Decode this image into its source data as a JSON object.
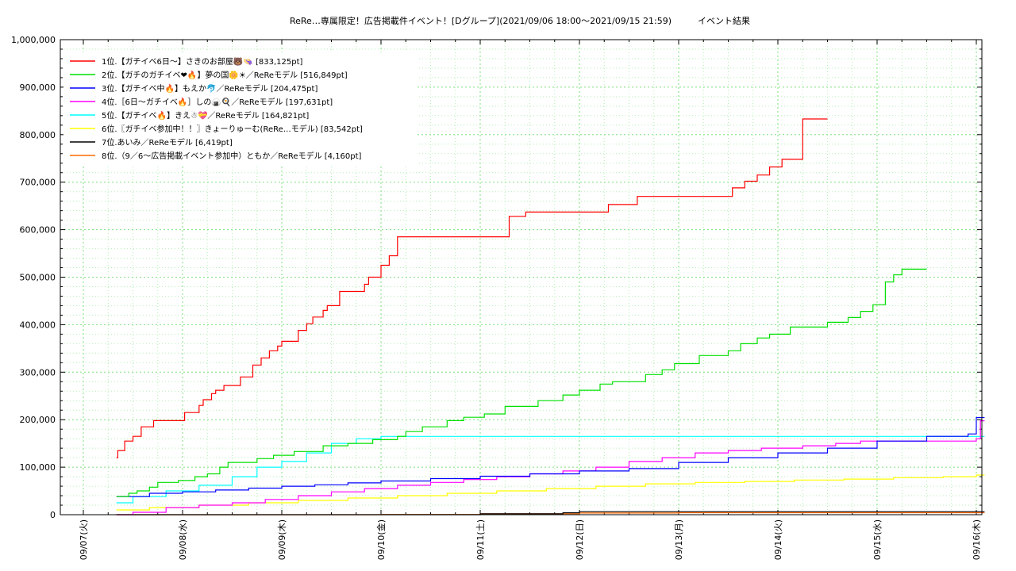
{
  "chart_data": {
    "type": "line",
    "title": "ReRe…専属限定！広告掲載件イベント！[Dグループ](2021/09/06 18:00〜2021/09/15 21:59)　　　イベント結果",
    "xlabel": "",
    "ylabel": "",
    "ylim": [
      0,
      1000000
    ],
    "xlim": [
      "09/07 00:00",
      "09/16 00:00"
    ],
    "x_ticks": [
      "09/07(火)",
      "09/08(水)",
      "09/09(木)",
      "09/10(金)",
      "09/11(土)",
      "09/12(日)",
      "09/13(月)",
      "09/14(火)",
      "09/15(水)",
      "09/16(木)"
    ],
    "y_ticks": [
      "0",
      "100,000",
      "200,000",
      "300,000",
      "400,000",
      "500,000",
      "600,000",
      "700,000",
      "800,000",
      "900,000",
      "1,000,000"
    ],
    "grid": true,
    "legend_position": "top-left",
    "series": [
      {
        "name": "1位.【ガチイベ6日〜】さきのお部屋🐻👒 [833,125pt]",
        "color": "#ff0000",
        "points": [
          [
            "09/07 08:00",
            120000
          ],
          [
            "09/07 08:20",
            135000
          ],
          [
            "09/07 10:00",
            155000
          ],
          [
            "09/07 12:00",
            165000
          ],
          [
            "09/07 14:00",
            185000
          ],
          [
            "09/07 17:00",
            198000
          ],
          [
            "09/07 21:00",
            198000
          ],
          [
            "09/08 00:30",
            215000
          ],
          [
            "09/08 04:00",
            230000
          ],
          [
            "09/08 05:00",
            242000
          ],
          [
            "09/08 07:00",
            255000
          ],
          [
            "09/08 08:00",
            262000
          ],
          [
            "09/08 10:00",
            272000
          ],
          [
            "09/08 14:00",
            290000
          ],
          [
            "09/08 17:00",
            315000
          ],
          [
            "09/08 19:00",
            330000
          ],
          [
            "09/08 21:00",
            345000
          ],
          [
            "09/08 23:00",
            355000
          ],
          [
            "09/09 00:00",
            365000
          ],
          [
            "09/09 04:00",
            388000
          ],
          [
            "09/09 06:00",
            402000
          ],
          [
            "09/09 07:30",
            416000
          ],
          [
            "09/09 10:00",
            430000
          ],
          [
            "09/09 11:00",
            440000
          ],
          [
            "09/09 14:00",
            470000
          ],
          [
            "09/09 20:00",
            485000
          ],
          [
            "09/09 21:00",
            500000
          ],
          [
            "09/10 00:00",
            525000
          ],
          [
            "09/10 02:00",
            545000
          ],
          [
            "09/10 04:00",
            585000
          ],
          [
            "09/11 01:00",
            585000
          ],
          [
            "09/11 07:00",
            628000
          ],
          [
            "09/11 11:00",
            637000
          ],
          [
            "09/12 02:00",
            637000
          ],
          [
            "09/12 07:00",
            653000
          ],
          [
            "09/12 14:00",
            670000
          ],
          [
            "09/13 11:00",
            670000
          ],
          [
            "09/13 13:00",
            688000
          ],
          [
            "09/13 16:00",
            702000
          ],
          [
            "09/13 19:00",
            715000
          ],
          [
            "09/13 22:00",
            732000
          ],
          [
            "09/14 01:00",
            748000
          ],
          [
            "09/14 04:00",
            748000
          ],
          [
            "09/14 06:00",
            833125
          ],
          [
            "09/14 12:00",
            833125
          ]
        ]
      },
      {
        "name": "2位.【ガチのガチイベ❤🔥】夢の国🌼☀／ReReモデル [516,849pt]",
        "color": "#00e000",
        "points": [
          [
            "09/07 08:00",
            38000
          ],
          [
            "09/07 11:00",
            45000
          ],
          [
            "09/07 13:00",
            50000
          ],
          [
            "09/07 16:00",
            58000
          ],
          [
            "09/07 18:00",
            68000
          ],
          [
            "09/07 23:00",
            72000
          ],
          [
            "09/08 03:00",
            80000
          ],
          [
            "09/08 06:00",
            86000
          ],
          [
            "09/08 09:00",
            100000
          ],
          [
            "09/08 11:00",
            110000
          ],
          [
            "09/08 18:00",
            118000
          ],
          [
            "09/08 22:00",
            125000
          ],
          [
            "09/09 03:00",
            133000
          ],
          [
            "09/09 10:00",
            145000
          ],
          [
            "09/09 16:00",
            150000
          ],
          [
            "09/09 22:00",
            158000
          ],
          [
            "09/10 04:00",
            165000
          ],
          [
            "09/10 06:00",
            175000
          ],
          [
            "09/10 10:00",
            185000
          ],
          [
            "09/10 16:00",
            198000
          ],
          [
            "09/10 20:00",
            205000
          ],
          [
            "09/11 01:00",
            212000
          ],
          [
            "09/11 06:00",
            228000
          ],
          [
            "09/11 14:00",
            240000
          ],
          [
            "09/11 20:00",
            252000
          ],
          [
            "09/12 00:00",
            262000
          ],
          [
            "09/12 05:00",
            275000
          ],
          [
            "09/12 08:00",
            280000
          ],
          [
            "09/12 16:00",
            295000
          ],
          [
            "09/12 20:00",
            305000
          ],
          [
            "09/12 23:00",
            318000
          ],
          [
            "09/13 05:00",
            335000
          ],
          [
            "09/13 12:00",
            345000
          ],
          [
            "09/13 15:00",
            360000
          ],
          [
            "09/13 19:00",
            372000
          ],
          [
            "09/13 22:00",
            380000
          ],
          [
            "09/14 03:00",
            395000
          ],
          [
            "09/14 12:00",
            405000
          ],
          [
            "09/14 17:00",
            415000
          ],
          [
            "09/14 20:00",
            428000
          ],
          [
            "09/14 23:00",
            442000
          ],
          [
            "09/15 02:00",
            490000
          ],
          [
            "09/15 04:00",
            505000
          ],
          [
            "09/15 06:00",
            516849
          ],
          [
            "09/15 12:00",
            516849
          ]
        ]
      },
      {
        "name": "3位.【ガチイベ中🔥】もえか🐬／ReReモデル [204,475pt]",
        "color": "#0000ff",
        "points": [
          [
            "09/07 08:00",
            38000
          ],
          [
            "09/07 16:00",
            45000
          ],
          [
            "09/08 00:00",
            48000
          ],
          [
            "09/08 08:00",
            52000
          ],
          [
            "09/08 16:00",
            56000
          ],
          [
            "09/09 00:00",
            60000
          ],
          [
            "09/09 08:00",
            63000
          ],
          [
            "09/09 16:00",
            67000
          ],
          [
            "09/10 00:00",
            71000
          ],
          [
            "09/10 12:00",
            76000
          ],
          [
            "09/11 00:00",
            81000
          ],
          [
            "09/11 12:00",
            86000
          ],
          [
            "09/12 00:00",
            92000
          ],
          [
            "09/12 12:00",
            97000
          ],
          [
            "09/13 00:00",
            110000
          ],
          [
            "09/13 12:00",
            120000
          ],
          [
            "09/14 00:00",
            130000
          ],
          [
            "09/14 12:00",
            140000
          ],
          [
            "09/15 00:00",
            155000
          ],
          [
            "09/15 12:00",
            165000
          ],
          [
            "09/15 22:00",
            170000
          ],
          [
            "09/16 00:00",
            204475
          ],
          [
            "09/16 02:00",
            204475
          ]
        ]
      },
      {
        "name": "4位.［6日〜ガチイベ🔥］しの🍙🍳／ReReモデル [197,631pt]",
        "color": "#ff00ff",
        "points": [
          [
            "09/07 08:00",
            0
          ],
          [
            "09/07 12:00",
            5000
          ],
          [
            "09/07 20:00",
            15000
          ],
          [
            "09/08 04:00",
            20000
          ],
          [
            "09/08 12:00",
            25000
          ],
          [
            "09/08 20:00",
            32000
          ],
          [
            "09/09 04:00",
            40000
          ],
          [
            "09/09 12:00",
            48000
          ],
          [
            "09/09 20:00",
            55000
          ],
          [
            "09/10 04:00",
            62000
          ],
          [
            "09/10 12:00",
            68000
          ],
          [
            "09/10 20:00",
            74000
          ],
          [
            "09/11 04:00",
            80000
          ],
          [
            "09/11 12:00",
            86000
          ],
          [
            "09/11 20:00",
            92000
          ],
          [
            "09/12 04:00",
            100000
          ],
          [
            "09/12 12:00",
            112000
          ],
          [
            "09/12 20:00",
            120000
          ],
          [
            "09/13 04:00",
            130000
          ],
          [
            "09/13 12:00",
            135000
          ],
          [
            "09/13 20:00",
            140000
          ],
          [
            "09/14 06:00",
            145000
          ],
          [
            "09/14 14:00",
            150000
          ],
          [
            "09/14 20:00",
            155000
          ],
          [
            "09/16 00:00",
            160000
          ],
          [
            "09/16 01:00",
            197631
          ],
          [
            "09/16 02:00",
            197631
          ]
        ]
      },
      {
        "name": "5位.【ガチイベ🔥】きえ☃💝／ReReモデル [164,821pt]",
        "color": "#00ffff",
        "points": [
          [
            "09/07 08:00",
            25000
          ],
          [
            "09/07 12:00",
            38000
          ],
          [
            "09/07 20:00",
            50000
          ],
          [
            "09/08 04:00",
            62000
          ],
          [
            "09/08 12:00",
            80000
          ],
          [
            "09/08 18:00",
            100000
          ],
          [
            "09/09 00:00",
            112000
          ],
          [
            "09/09 06:00",
            130000
          ],
          [
            "09/09 12:00",
            150000
          ],
          [
            "09/09 18:00",
            160000
          ],
          [
            "09/10 00:00",
            164821
          ],
          [
            "09/16 02:00",
            164821
          ]
        ]
      },
      {
        "name": "6位.〖ガチイベ参加中！！〗きょーりゅーむ(ReRe…モデル) [83,542pt]",
        "color": "#ffff00",
        "points": [
          [
            "09/07 08:00",
            10000
          ],
          [
            "09/07 16:00",
            15000
          ],
          [
            "09/08 04:00",
            20000
          ],
          [
            "09/08 16:00",
            25000
          ],
          [
            "09/09 04:00",
            30000
          ],
          [
            "09/09 16:00",
            35000
          ],
          [
            "09/10 04:00",
            40000
          ],
          [
            "09/10 16:00",
            45000
          ],
          [
            "09/11 04:00",
            50000
          ],
          [
            "09/11 16:00",
            55000
          ],
          [
            "09/12 04:00",
            60000
          ],
          [
            "09/12 16:00",
            65000
          ],
          [
            "09/13 04:00",
            68000
          ],
          [
            "09/13 16:00",
            70000
          ],
          [
            "09/14 04:00",
            73000
          ],
          [
            "09/14 16:00",
            75000
          ],
          [
            "09/15 04:00",
            78000
          ],
          [
            "09/15 16:00",
            80000
          ],
          [
            "09/16 00:00",
            83542
          ],
          [
            "09/16 02:00",
            83542
          ]
        ]
      },
      {
        "name": "7位.あいみ／ReReモデル [6,419pt]",
        "color": "#000000",
        "points": [
          [
            "09/07 08:00",
            0
          ],
          [
            "09/10 08:00",
            0
          ],
          [
            "09/11 00:00",
            2000
          ],
          [
            "09/11 20:00",
            4000
          ],
          [
            "09/12 00:00",
            6419
          ],
          [
            "09/16 02:00",
            6419
          ]
        ]
      },
      {
        "name": "8位.（9／6〜広告掲載イベント参加中）ともか／ReReモデル [4,160pt]",
        "color": "#ff6a00",
        "points": [
          [
            "09/07 08:00",
            0
          ],
          [
            "09/10 00:00",
            500
          ],
          [
            "09/11 00:00",
            2000
          ],
          [
            "09/12 00:00",
            3500
          ],
          [
            "09/13 00:00",
            4160
          ],
          [
            "09/16 02:00",
            4160
          ]
        ]
      }
    ]
  }
}
